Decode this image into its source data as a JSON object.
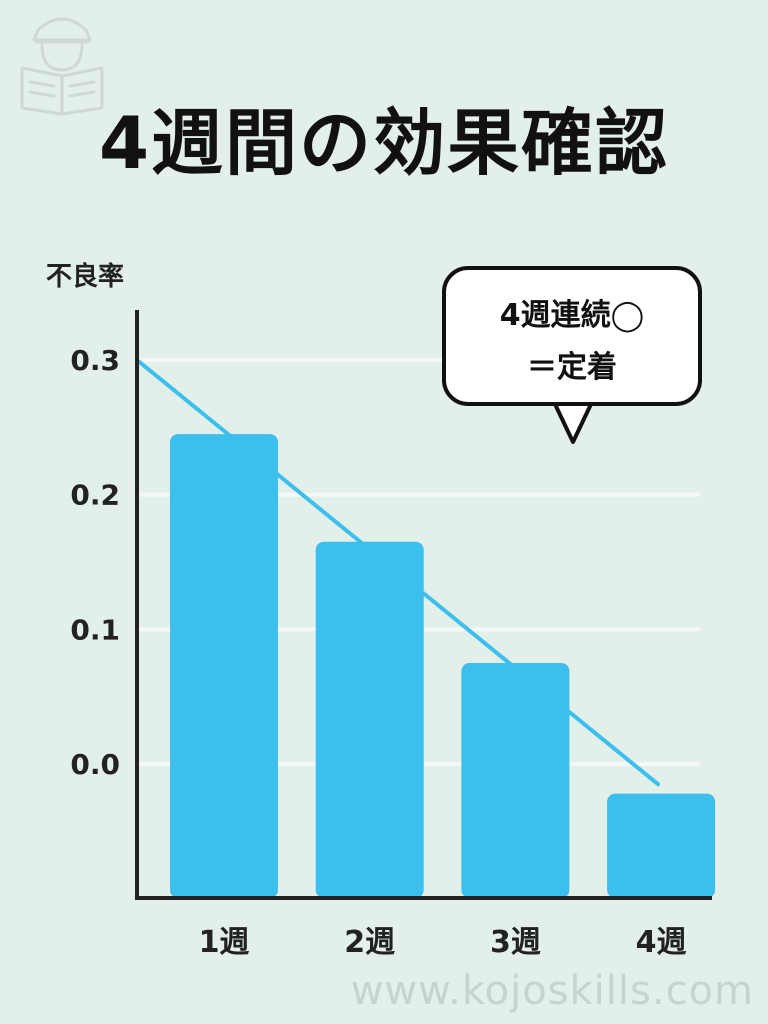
{
  "title": "4週間の効果確認",
  "callout": {
    "line1": "4週連続◯",
    "line2": "＝定着"
  },
  "watermark": "www.kojoskills.com",
  "logo_icon": "reading-person-icon",
  "colors": {
    "background": "#e3efe9",
    "bar": "#3dbfed",
    "line": "#3dbfed",
    "axis": "#222222",
    "grid": "#f4f9f6"
  },
  "chart_data": {
    "type": "bar",
    "ylabel": "不良率",
    "xlabel": "",
    "categories": [
      "1週",
      "2週",
      "3週",
      "4週"
    ],
    "values": [
      0.245,
      0.165,
      0.075,
      -0.022
    ],
    "yticks": [
      "0.3",
      "0.2",
      "0.1",
      "0.0"
    ],
    "ytick_values": [
      0.3,
      0.2,
      0.1,
      0.0
    ],
    "ylim": [
      -0.1,
      0.35
    ],
    "grid": true,
    "trend_line": {
      "x": [
        "0",
        "4週"
      ],
      "y": [
        0.3,
        -0.015
      ]
    }
  }
}
